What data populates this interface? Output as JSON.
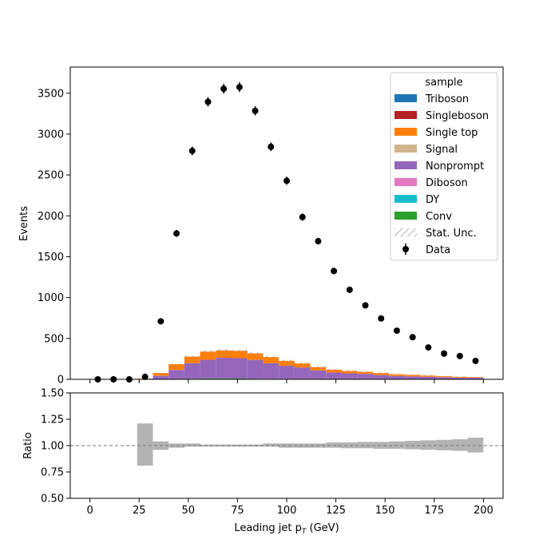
{
  "chart_data": {
    "type": "bar",
    "subtype": "stacked-histogram-with-ratio",
    "xlabel": "Leading jet  p",
    "xlabel_sub": "T",
    "xlabel_unit": " (GeV)",
    "ylabel": "Events",
    "ratio_ylabel": "Ratio",
    "xlim": [
      -10,
      210
    ],
    "ylim": [
      0,
      3820
    ],
    "ratio_ylim": [
      0.5,
      1.5
    ],
    "x_ticks": [
      0,
      25,
      50,
      75,
      100,
      125,
      150,
      175,
      200
    ],
    "y_ticks": [
      0,
      500,
      1000,
      1500,
      2000,
      2500,
      3000,
      3500
    ],
    "ratio_y_ticks": [
      "0.50",
      "0.75",
      "1.00",
      "1.25",
      "1.50"
    ],
    "ratio_y_tick_values": [
      0.5,
      0.75,
      1.0,
      1.25,
      1.5
    ],
    "ratio_reference": 1.0,
    "bin_edges": [
      0,
      8,
      16,
      24,
      32,
      40,
      48,
      56,
      64,
      72,
      80,
      88,
      96,
      104,
      112,
      120,
      128,
      136,
      144,
      152,
      160,
      168,
      176,
      184,
      192,
      200
    ],
    "legend": {
      "title": "sample",
      "placement": "top-right",
      "entries": [
        {
          "label": "Triboson",
          "color": "#1f77b4",
          "kind": "patch"
        },
        {
          "label": "Singleboson",
          "color": "#b22222",
          "kind": "patch"
        },
        {
          "label": "Single top",
          "color": "#ff7f0e",
          "kind": "patch"
        },
        {
          "label": "Signal",
          "color": "#d2b48c",
          "kind": "patch"
        },
        {
          "label": "Nonprompt",
          "color": "#9467bd",
          "kind": "patch"
        },
        {
          "label": "Diboson",
          "color": "#e377c2",
          "kind": "patch"
        },
        {
          "label": "DY",
          "color": "#17becf",
          "kind": "patch"
        },
        {
          "label": "Conv",
          "color": "#2ca02c",
          "kind": "patch"
        },
        {
          "label": "Stat. Unc.",
          "color": "#888888",
          "kind": "hatch"
        },
        {
          "label": "Data",
          "color": "#000000",
          "kind": "marker"
        }
      ]
    },
    "series": [
      {
        "name": "Conv",
        "color": "#2ca02c",
        "values": [
          0,
          0,
          0,
          0,
          2,
          5,
          8,
          9,
          9,
          9,
          8,
          7,
          6,
          5,
          4,
          3,
          3,
          2,
          2,
          2,
          1,
          1,
          1,
          1,
          1
        ]
      },
      {
        "name": "Nonprompt",
        "color": "#9467bd",
        "values": [
          0,
          0,
          0,
          5,
          40,
          110,
          190,
          230,
          255,
          250,
          230,
          190,
          160,
          140,
          105,
          80,
          70,
          65,
          50,
          40,
          35,
          30,
          25,
          20,
          18
        ]
      },
      {
        "name": "Single top",
        "color": "#ff7f0e",
        "values": [
          0,
          0,
          0,
          3,
          35,
          70,
          80,
          100,
          90,
          90,
          80,
          75,
          60,
          50,
          40,
          35,
          30,
          25,
          25,
          20,
          18,
          15,
          12,
          10,
          8
        ]
      }
    ],
    "data_points": {
      "name": "Data",
      "x": [
        4,
        12,
        20,
        28,
        36,
        44,
        52,
        60,
        68,
        76,
        84,
        92,
        100,
        108,
        116,
        124,
        132,
        140,
        148,
        156,
        164,
        172,
        180,
        188,
        196
      ],
      "y": [
        0,
        0,
        0,
        30,
        710,
        1785,
        2795,
        3395,
        3555,
        3575,
        3285,
        2845,
        2430,
        1985,
        1690,
        1325,
        1095,
        905,
        745,
        595,
        515,
        390,
        315,
        285,
        225
      ],
      "yerr": [
        0,
        0,
        0,
        6,
        27,
        42,
        53,
        58,
        60,
        60,
        57,
        53,
        49,
        45,
        41,
        36,
        33,
        30,
        27,
        24,
        23,
        20,
        18,
        17,
        15
      ]
    },
    "ratio_band": {
      "low": [
        null,
        null,
        null,
        0.81,
        0.96,
        0.98,
        0.99,
        0.99,
        0.99,
        0.99,
        0.99,
        0.99,
        0.98,
        0.98,
        0.98,
        0.98,
        0.975,
        0.975,
        0.97,
        0.97,
        0.965,
        0.96,
        0.955,
        0.95,
        0.935
      ],
      "high": [
        null,
        null,
        null,
        1.21,
        1.04,
        1.02,
        1.02,
        1.01,
        1.01,
        1.01,
        1.01,
        1.02,
        1.02,
        1.02,
        1.02,
        1.03,
        1.03,
        1.035,
        1.035,
        1.04,
        1.045,
        1.05,
        1.055,
        1.06,
        1.075
      ]
    }
  }
}
